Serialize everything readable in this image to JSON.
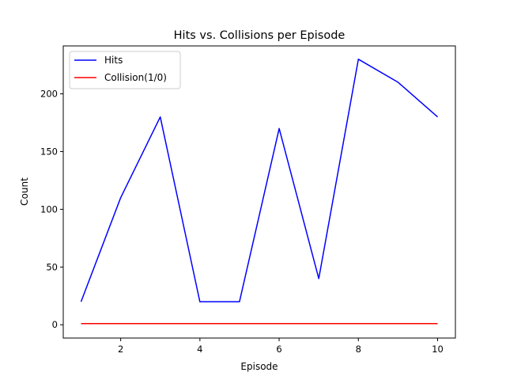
{
  "chart_data": {
    "type": "line",
    "title": "Hits vs. Collisions per Episode",
    "xlabel": "Episode",
    "ylabel": "Count",
    "xlim": [
      0.55,
      10.45
    ],
    "ylim": [
      -11.5,
      241.5
    ],
    "x_ticks": [
      2,
      4,
      6,
      8,
      10
    ],
    "y_ticks": [
      0,
      50,
      100,
      150,
      200
    ],
    "grid": false,
    "legend_position": "upper-left",
    "x": [
      1,
      2,
      3,
      4,
      5,
      6,
      7,
      8,
      9,
      10
    ],
    "series": [
      {
        "name": "Hits",
        "color": "#0000ff",
        "values": [
          20,
          110,
          180,
          20,
          20,
          170,
          40,
          230,
          210,
          180
        ]
      },
      {
        "name": "Collision(1/0)",
        "color": "#ff0000",
        "values": [
          1,
          1,
          1,
          1,
          1,
          1,
          1,
          1,
          1,
          1
        ]
      }
    ]
  }
}
